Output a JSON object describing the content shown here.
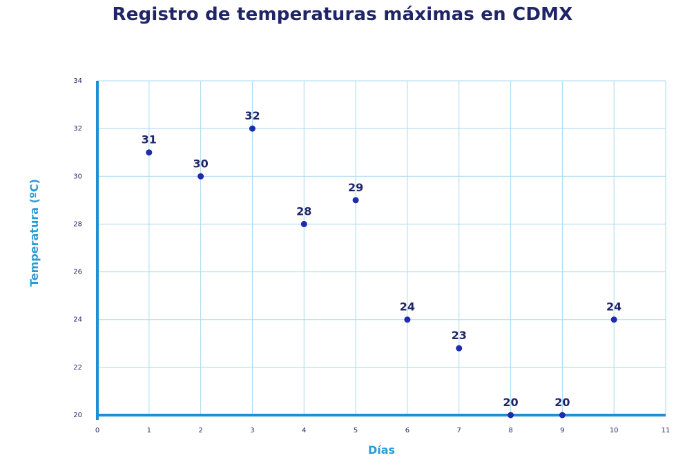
{
  "chart_data": {
    "type": "scatter",
    "title": "Registro de temperaturas máximas en CDMX",
    "xlabel": "Días",
    "ylabel": "Temperatura (ºC)",
    "xlim": [
      0,
      11
    ],
    "ylim": [
      20,
      34
    ],
    "x_ticks": [
      "0",
      "1",
      "2",
      "3",
      "4",
      "5",
      "6",
      "7",
      "8",
      "9",
      "10",
      "11"
    ],
    "y_ticks": [
      "20",
      "22",
      "24",
      "26",
      "28",
      "30",
      "32",
      "34"
    ],
    "grid": true,
    "x": [
      1,
      2,
      3,
      4,
      5,
      6,
      7,
      8,
      9,
      10
    ],
    "y": [
      31,
      30,
      32,
      28,
      29,
      24,
      22.8,
      20,
      20,
      24
    ],
    "data_labels": [
      "31",
      "30",
      "32",
      "28",
      "29",
      "24",
      "23",
      "20",
      "20",
      "24"
    ],
    "colors": {
      "point": "#1c2bb0",
      "axis": "#1e8fd0",
      "grid": "#a9d8ef",
      "title": "#1f2566",
      "axis_label": "#2b9bd6"
    }
  }
}
